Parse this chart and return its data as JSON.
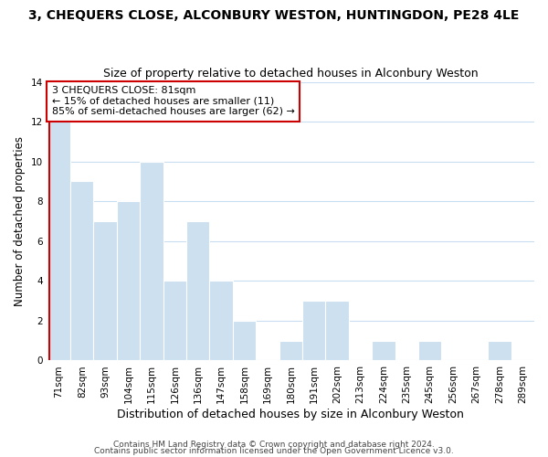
{
  "title": "3, CHEQUERS CLOSE, ALCONBURY WESTON, HUNTINGDON, PE28 4LE",
  "subtitle": "Size of property relative to detached houses in Alconbury Weston",
  "xlabel": "Distribution of detached houses by size in Alconbury Weston",
  "ylabel": "Number of detached properties",
  "bin_labels": [
    "71sqm",
    "82sqm",
    "93sqm",
    "104sqm",
    "115sqm",
    "126sqm",
    "136sqm",
    "147sqm",
    "158sqm",
    "169sqm",
    "180sqm",
    "191sqm",
    "202sqm",
    "213sqm",
    "224sqm",
    "235sqm",
    "245sqm",
    "256sqm",
    "267sqm",
    "278sqm",
    "289sqm"
  ],
  "bar_values": [
    12,
    9,
    7,
    8,
    10,
    4,
    7,
    4,
    2,
    0,
    1,
    3,
    3,
    0,
    1,
    0,
    1,
    0,
    0,
    1,
    0
  ],
  "bar_color": "#cce0f0",
  "vline_color": "#cc0000",
  "vline_x": -0.425,
  "annotation_text": "3 CHEQUERS CLOSE: 81sqm\n← 15% of detached houses are smaller (11)\n85% of semi-detached houses are larger (62) →",
  "annotation_box_facecolor": "#ffffff",
  "annotation_box_edgecolor": "#cc0000",
  "ylim": [
    0,
    14
  ],
  "yticks": [
    0,
    2,
    4,
    6,
    8,
    10,
    12,
    14
  ],
  "footer_line1": "Contains HM Land Registry data © Crown copyright and database right 2024.",
  "footer_line2": "Contains public sector information licensed under the Open Government Licence v3.0.",
  "bg_color": "#ffffff",
  "grid_color": "#c8ddf0",
  "title_fontsize": 10,
  "subtitle_fontsize": 9,
  "xlabel_fontsize": 9,
  "ylabel_fontsize": 8.5,
  "tick_fontsize": 7.5,
  "annotation_fontsize": 8,
  "footer_fontsize": 6.5
}
